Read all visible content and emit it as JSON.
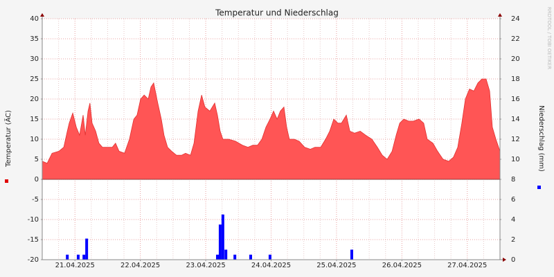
{
  "chart_data": {
    "type": "area",
    "title": "Temperatur und Niederschlag",
    "ylabel": "Temperatur (ÄC)",
    "y2label": "Niederschlag (mm)",
    "watermark": "RRDTOOL / TOBI OETIKER",
    "xlim": [
      0,
      168
    ],
    "xticks": [
      {
        "value": 12,
        "label": "21.04.2025"
      },
      {
        "value": 36,
        "label": "22.04.2025"
      },
      {
        "value": 60,
        "label": "23.04.2025"
      },
      {
        "value": 84,
        "label": "24.04.2025"
      },
      {
        "value": 108,
        "label": "25.04.2025"
      },
      {
        "value": 132,
        "label": "26.04.2025"
      },
      {
        "value": 156,
        "label": "27.04.2025"
      }
    ],
    "xminorticks": [
      0,
      6,
      18,
      24,
      30,
      42,
      48,
      54,
      66,
      72,
      78,
      90,
      96,
      102,
      114,
      120,
      126,
      138,
      144,
      150,
      162,
      168
    ],
    "ylim": [
      -20,
      40
    ],
    "yticks": [
      -20,
      -15,
      -10,
      -5,
      0,
      5,
      10,
      15,
      20,
      25,
      30,
      35,
      40
    ],
    "y2lim": [
      0,
      24
    ],
    "y2ticks": [
      0,
      2,
      4,
      6,
      8,
      10,
      12,
      14,
      16,
      18,
      20,
      22,
      24
    ],
    "grid": true,
    "series": [
      {
        "type": "area",
        "color": "#ff5555",
        "x": [
          0,
          1.8,
          3.6,
          6.1,
          7.9,
          9.2,
          9.9,
          11.2,
          12.5,
          13.7,
          15.0,
          15.8,
          16.8,
          17.5,
          18.3,
          19.6,
          20.8,
          22.1,
          23.9,
          25.7,
          26.9,
          28.2,
          30.2,
          32.0,
          33.6,
          34.8,
          36.1,
          37.4,
          38.9,
          39.9,
          40.9,
          42.4,
          43.7,
          44.7,
          46.0,
          47.5,
          49.3,
          51.1,
          52.6,
          54.4,
          55.7,
          57.2,
          58.5,
          59.7,
          61.5,
          63.3,
          64.3,
          65.3,
          66.3,
          68.4,
          70.9,
          73.5,
          75.5,
          77.3,
          79.0,
          80.6,
          82.1,
          83.6,
          84.9,
          86.2,
          87.4,
          88.7,
          89.7,
          90.7,
          92.5,
          94.3,
          96.3,
          98.4,
          100.1,
          102.2,
          104.0,
          105.5,
          107.0,
          108.5,
          109.8,
          111.6,
          112.9,
          114.6,
          116.7,
          118.7,
          121.0,
          123.0,
          124.8,
          126.6,
          128.4,
          129.9,
          131.2,
          132.7,
          134.5,
          136.2,
          138.3,
          140.0,
          141.3,
          143.4,
          145.1,
          147.1,
          149.2,
          150.9,
          152.5,
          154.0,
          155.3,
          156.8,
          158.4,
          159.9,
          161.4,
          162.9,
          164.2,
          165.2,
          166.5,
          168.0
        ],
        "values": [
          4.5,
          4,
          6.5,
          7,
          8,
          12,
          14,
          16.5,
          13,
          11,
          16,
          11,
          17,
          19,
          14,
          12,
          9,
          8,
          8,
          8,
          9,
          7,
          6.5,
          10,
          15,
          16,
          20,
          21,
          20,
          23,
          24,
          19,
          15,
          11,
          8,
          7,
          6,
          6,
          6.5,
          6,
          9,
          17,
          21,
          18,
          17,
          19,
          16,
          12,
          10,
          10,
          9.5,
          8.5,
          8,
          8.5,
          8.5,
          10,
          13,
          15,
          17,
          15,
          17,
          18,
          13,
          10,
          10,
          9.5,
          8,
          7.5,
          8,
          8,
          10,
          12,
          15,
          14,
          14,
          16,
          12,
          11.5,
          12,
          11,
          10,
          8,
          6,
          5,
          7,
          11,
          14,
          15,
          14.5,
          14.5,
          15,
          14,
          10,
          9,
          7,
          5,
          4.5,
          5.5,
          8,
          14,
          20,
          22.5,
          22,
          24,
          25,
          25,
          22,
          13,
          10,
          7
        ]
      },
      {
        "type": "bar",
        "axis": "y2",
        "color": "#0000ff",
        "x": [
          9.2,
          13.2,
          15.3,
          16.3,
          64.3,
          65.3,
          66.3,
          67.4,
          70.7,
          76.5,
          83.6,
          113.6
        ],
        "values": [
          0.5,
          0.5,
          0.5,
          2.1,
          0.5,
          3.5,
          4.5,
          1,
          0.5,
          0.5,
          0.5,
          1
        ]
      }
    ]
  }
}
